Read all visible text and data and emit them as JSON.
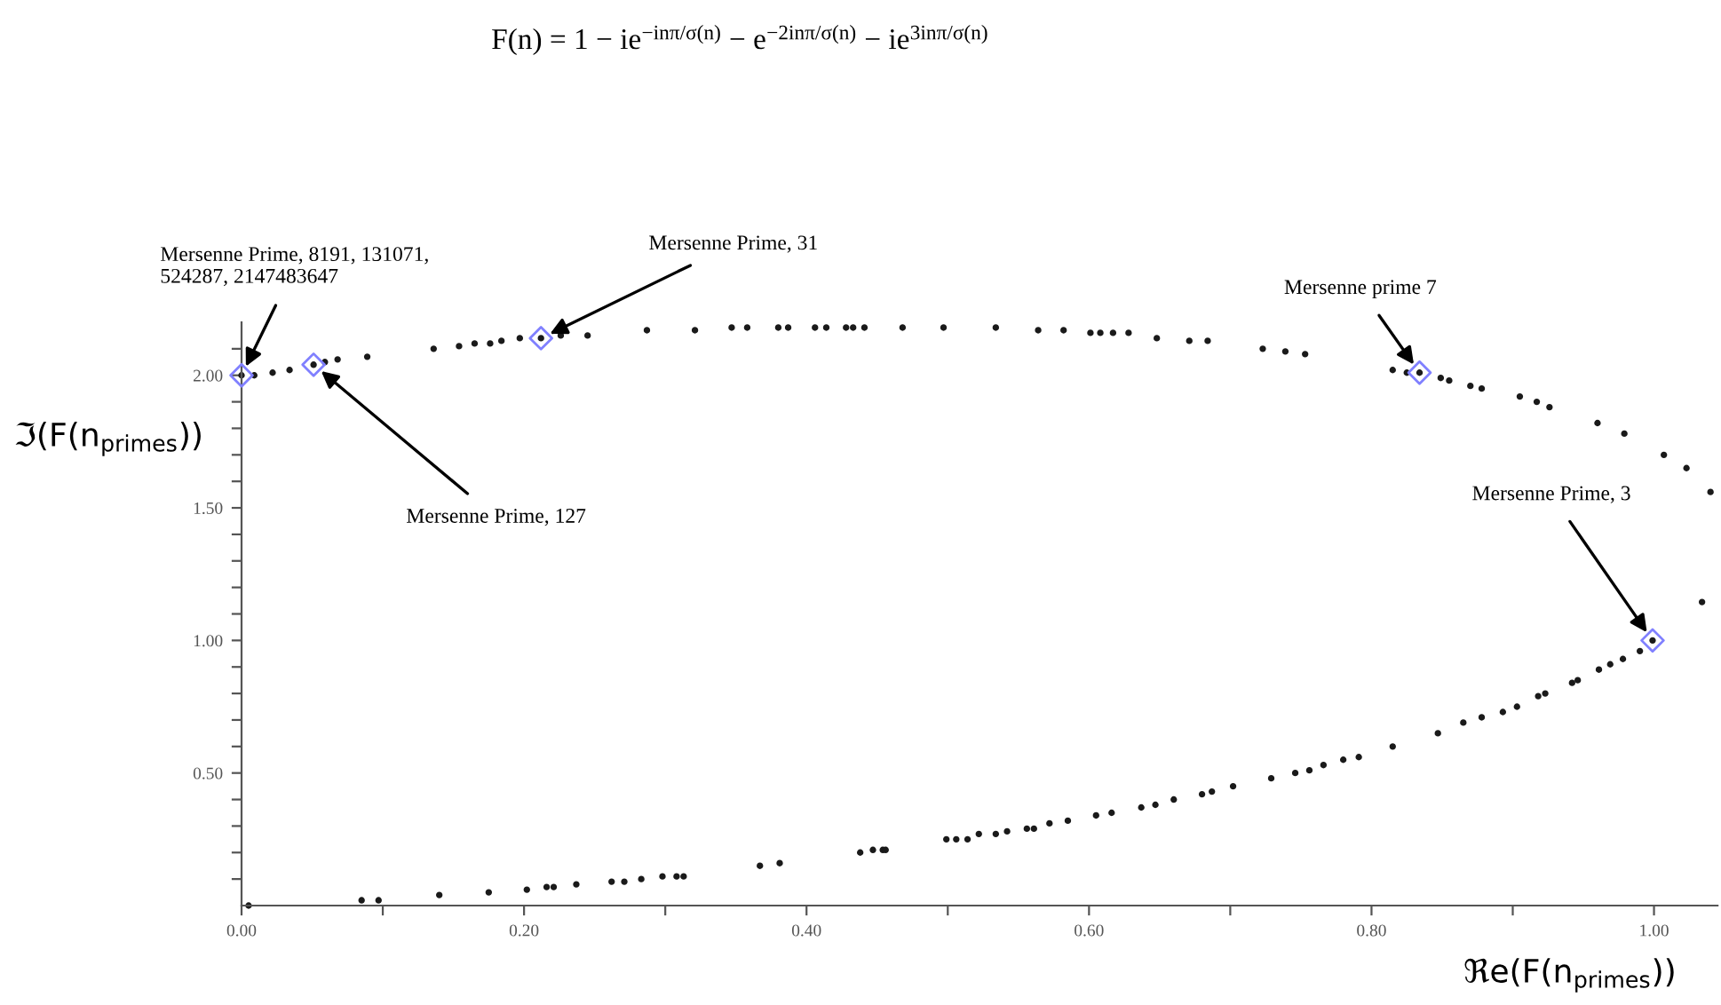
{
  "chart_data": {
    "type": "scatter",
    "title": "F(n) = 1 − ie$^{−inπ/σ(n)}$ − e$^{−2inπ/σ(n)}$ − ie$^{3inπ/σ(n)}$",
    "xlabel": "ℜe(F(n$_{primes}$))",
    "ylabel": "ℑ(F(n$_{primes}$))",
    "xlim": [
      0,
      1.045
    ],
    "ylim": [
      0,
      2.2
    ],
    "xticks": [
      {
        "value": 0,
        "label": "0.00"
      },
      {
        "value": 0.1,
        "label": null
      },
      {
        "value": 0.2,
        "label": "0.20"
      },
      {
        "value": 0.3,
        "label": null
      },
      {
        "value": 0.4,
        "label": "0.40"
      },
      {
        "value": 0.5,
        "label": null
      },
      {
        "value": 0.6,
        "label": "0.60"
      },
      {
        "value": 0.7,
        "label": null
      },
      {
        "value": 0.8,
        "label": "0.80"
      },
      {
        "value": 0.9,
        "label": null
      },
      {
        "value": 1.0,
        "label": "1.00"
      }
    ],
    "yticks": [
      {
        "value": 0.1,
        "label": null
      },
      {
        "value": 0.2,
        "label": null
      },
      {
        "value": 0.3,
        "label": null
      },
      {
        "value": 0.4,
        "label": null
      },
      {
        "value": 0.5,
        "label": "0.50"
      },
      {
        "value": 0.6,
        "label": null
      },
      {
        "value": 0.7,
        "label": null
      },
      {
        "value": 0.8,
        "label": null
      },
      {
        "value": 0.9,
        "label": null
      },
      {
        "value": 1.0,
        "label": "1.00"
      },
      {
        "value": 1.1,
        "label": null
      },
      {
        "value": 1.2,
        "label": null
      },
      {
        "value": 1.3,
        "label": null
      },
      {
        "value": 1.4,
        "label": null
      },
      {
        "value": 1.5,
        "label": "1.50"
      },
      {
        "value": 1.6,
        "label": null
      },
      {
        "value": 1.7,
        "label": null
      },
      {
        "value": 1.8,
        "label": null
      },
      {
        "value": 1.9,
        "label": null
      },
      {
        "value": 2.0,
        "label": "2.00"
      },
      {
        "value": 2.1,
        "label": null
      }
    ],
    "series": [
      {
        "color": "#1a1a1a",
        "marker": "circle",
        "x": [
          0.0,
          0.009,
          0.022,
          0.034,
          0.051,
          0.059,
          0.068,
          0.089,
          0.136,
          0.154,
          0.165,
          0.176,
          0.184,
          0.197,
          0.212,
          0.226,
          0.245,
          0.287,
          0.321,
          0.347,
          0.358,
          0.38,
          0.387,
          0.406,
          0.414,
          0.428,
          0.433,
          0.441,
          0.468,
          0.497,
          0.534,
          0.564,
          0.582,
          0.601,
          0.608,
          0.617,
          0.628,
          0.648,
          0.671,
          0.684,
          0.723,
          0.739,
          0.753,
          0.815,
          0.825,
          0.834,
          0.849,
          0.855,
          0.87,
          0.878,
          0.905,
          0.917,
          0.926,
          0.96,
          0.979,
          1.007,
          1.023,
          1.04,
          1.034,
          0.005,
          0.085,
          0.097,
          0.14,
          0.175,
          0.202,
          0.216,
          0.221,
          0.237,
          0.262,
          0.271,
          0.283,
          0.298,
          0.308,
          0.313,
          0.367,
          0.381,
          0.438,
          0.447,
          0.454,
          0.456,
          0.499,
          0.506,
          0.514,
          0.522,
          0.534,
          0.542,
          0.556,
          0.561,
          0.572,
          0.585,
          0.605,
          0.616,
          0.637,
          0.647,
          0.66,
          0.68,
          0.687,
          0.702,
          0.729,
          0.746,
          0.756,
          0.766,
          0.78,
          0.791,
          0.815,
          0.847,
          0.865,
          0.878,
          0.893,
          0.903,
          0.918,
          0.923,
          0.942,
          0.946,
          0.961,
          0.969,
          0.978,
          0.99,
          0.999
        ],
        "values": [
          2.0,
          2.0,
          2.01,
          2.02,
          2.04,
          2.05,
          2.06,
          2.07,
          2.1,
          2.11,
          2.12,
          2.12,
          2.13,
          2.14,
          2.14,
          2.15,
          2.15,
          2.17,
          2.17,
          2.18,
          2.18,
          2.18,
          2.18,
          2.18,
          2.18,
          2.18,
          2.18,
          2.18,
          2.18,
          2.18,
          2.18,
          2.17,
          2.17,
          2.16,
          2.16,
          2.16,
          2.16,
          2.14,
          2.13,
          2.13,
          2.1,
          2.09,
          2.08,
          2.02,
          2.01,
          2.01,
          1.99,
          1.98,
          1.96,
          1.95,
          1.92,
          1.9,
          1.88,
          1.82,
          1.78,
          1.7,
          1.65,
          1.56,
          1.145,
          0.0,
          0.02,
          0.02,
          0.04,
          0.05,
          0.06,
          0.07,
          0.07,
          0.08,
          0.09,
          0.09,
          0.1,
          0.11,
          0.11,
          0.11,
          0.15,
          0.16,
          0.2,
          0.21,
          0.21,
          0.21,
          0.25,
          0.25,
          0.25,
          0.27,
          0.27,
          0.28,
          0.29,
          0.29,
          0.31,
          0.32,
          0.34,
          0.35,
          0.37,
          0.38,
          0.4,
          0.42,
          0.43,
          0.45,
          0.48,
          0.5,
          0.51,
          0.53,
          0.55,
          0.56,
          0.6,
          0.65,
          0.69,
          0.71,
          0.73,
          0.75,
          0.79,
          0.8,
          0.84,
          0.85,
          0.89,
          0.91,
          0.93,
          0.96,
          1.0
        ]
      },
      {
        "color": "#8080ff",
        "marker": "diamond",
        "x": [
          0.0,
          0.051,
          0.212,
          0.834,
          0.999
        ],
        "values": [
          2.0,
          2.04,
          2.14,
          2.01,
          1.0
        ]
      }
    ],
    "annotations": [
      {
        "text": "Mersenne Prime, 8191, 131071,\n524287, 2147483647",
        "x": 0.0,
        "y": 2.0
      },
      {
        "text": "Mersenne Prime, 31",
        "x": 0.212,
        "y": 2.14
      },
      {
        "text": "Mersenne Prime, 127",
        "x": 0.051,
        "y": 2.04
      },
      {
        "text": "Mersenne prime 7",
        "x": 0.834,
        "y": 2.01
      },
      {
        "text": "Mersenne Prime, 3",
        "x": 0.999,
        "y": 1.0
      }
    ]
  }
}
